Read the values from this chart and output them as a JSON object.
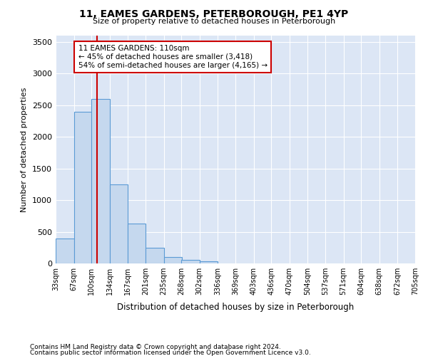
{
  "title": "11, EAMES GARDENS, PETERBOROUGH, PE1 4YP",
  "subtitle": "Size of property relative to detached houses in Peterborough",
  "xlabel": "Distribution of detached houses by size in Peterborough",
  "ylabel": "Number of detached properties",
  "footnote1": "Contains HM Land Registry data © Crown copyright and database right 2024.",
  "footnote2": "Contains public sector information licensed under the Open Government Licence v3.0.",
  "property_size": 110,
  "annotation_title": "11 EAMES GARDENS: 110sqm",
  "annotation_line1": "← 45% of detached houses are smaller (3,418)",
  "annotation_line2": "54% of semi-detached houses are larger (4,165) →",
  "bin_edges": [
    33,
    67,
    100,
    134,
    167,
    201,
    235,
    268,
    302,
    336,
    369,
    403,
    436,
    470,
    504,
    537,
    571,
    604,
    638,
    672,
    705
  ],
  "bar_heights": [
    390,
    2400,
    2600,
    1250,
    625,
    250,
    100,
    55,
    30,
    0,
    0,
    0,
    0,
    0,
    0,
    0,
    0,
    0,
    0,
    0
  ],
  "bar_color": "#c5d8ee",
  "bar_edge_color": "#5b9bd5",
  "vline_color": "#cc0000",
  "annotation_box_color": "#cc0000",
  "background_color": "#ffffff",
  "plot_bg_color": "#dce6f5",
  "ylim": [
    0,
    3600
  ],
  "yticks": [
    0,
    500,
    1000,
    1500,
    2000,
    2500,
    3000,
    3500
  ]
}
